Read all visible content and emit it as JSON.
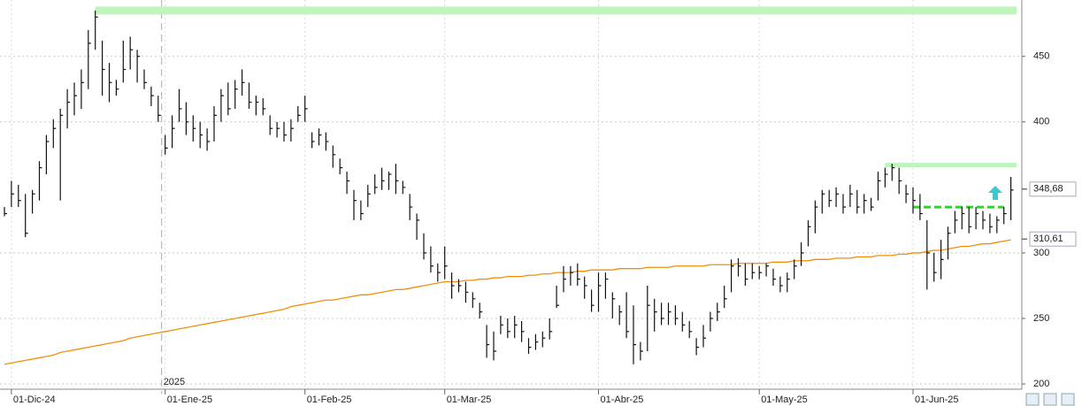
{
  "chart_data": {
    "type": "ohlc",
    "year_label": "2025",
    "categories": [
      null,
      "01-Dic-24",
      null,
      null,
      null,
      null,
      null,
      null,
      null,
      null,
      null,
      null,
      null,
      null,
      null,
      null,
      null,
      null,
      null,
      null,
      null,
      null,
      null,
      "01-Ene-25",
      null,
      null,
      null,
      null,
      null,
      null,
      null,
      null,
      null,
      null,
      null,
      null,
      null,
      null,
      null,
      null,
      null,
      null,
      null,
      "01-Feb-25",
      null,
      null,
      null,
      null,
      null,
      null,
      null,
      null,
      null,
      null,
      null,
      null,
      null,
      null,
      null,
      null,
      null,
      null,
      null,
      "01-Mar-25",
      null,
      null,
      null,
      null,
      null,
      null,
      null,
      null,
      null,
      null,
      null,
      null,
      null,
      null,
      null,
      null,
      null,
      null,
      null,
      null,
      null,
      "01-Abr-25",
      null,
      null,
      null,
      null,
      null,
      null,
      null,
      null,
      null,
      null,
      null,
      null,
      null,
      null,
      null,
      null,
      null,
      null,
      null,
      null,
      null,
      null,
      "01-May-25",
      null,
      null,
      null,
      null,
      null,
      null,
      null,
      null,
      null,
      null,
      null,
      null,
      null,
      null,
      null,
      null,
      null,
      null,
      null,
      null,
      null,
      "01-Jun-25",
      null,
      null,
      null,
      null,
      null,
      null,
      null,
      null,
      null,
      null,
      null,
      null,
      null,
      null
    ],
    "color": "#111111",
    "high": [
      335,
      355,
      352,
      345,
      348,
      370,
      390,
      402,
      410,
      425,
      430,
      440,
      470,
      485,
      462,
      445,
      432,
      462,
      465,
      455,
      440,
      427,
      420,
      390,
      405,
      425,
      415,
      405,
      400,
      395,
      412,
      425,
      430,
      432,
      440,
      430,
      420,
      418,
      405,
      400,
      400,
      402,
      412,
      420,
      392,
      395,
      392,
      382,
      372,
      362,
      348,
      340,
      352,
      360,
      365,
      362,
      368,
      355,
      345,
      330,
      315,
      305,
      292,
      305,
      285,
      280,
      278,
      270,
      262,
      245,
      240,
      252,
      250,
      252,
      248,
      235,
      238,
      240,
      250,
      275,
      290,
      290,
      292,
      282,
      272,
      285,
      285,
      270,
      260,
      270,
      260,
      232,
      275,
      265,
      262,
      262,
      260,
      255,
      248,
      235,
      245,
      255,
      262,
      275,
      295,
      296,
      292,
      292,
      290,
      292,
      288,
      282,
      285,
      295,
      308,
      325,
      340,
      348,
      348,
      350,
      345,
      352,
      348,
      345,
      342,
      362,
      365,
      368,
      365,
      352,
      350,
      345,
      325,
      300,
      310,
      320,
      332,
      335,
      335,
      335,
      332,
      330,
      328,
      335,
      358
    ],
    "low": [
      328,
      335,
      335,
      312,
      330,
      340,
      360,
      380,
      340,
      395,
      405,
      410,
      425,
      455,
      420,
      415,
      420,
      430,
      440,
      430,
      425,
      412,
      400,
      375,
      380,
      400,
      390,
      385,
      380,
      378,
      385,
      400,
      405,
      410,
      420,
      410,
      405,
      405,
      390,
      388,
      385,
      385,
      400,
      400,
      380,
      382,
      378,
      365,
      360,
      345,
      325,
      325,
      335,
      345,
      348,
      348,
      345,
      345,
      325,
      310,
      295,
      285,
      278,
      280,
      265,
      270,
      262,
      258,
      250,
      220,
      218,
      238,
      235,
      235,
      232,
      223,
      226,
      228,
      234,
      258,
      270,
      275,
      275,
      265,
      255,
      255,
      265,
      250,
      245,
      235,
      215,
      218,
      225,
      240,
      245,
      245,
      245,
      240,
      235,
      222,
      228,
      240,
      248,
      258,
      270,
      282,
      275,
      280,
      280,
      282,
      275,
      270,
      270,
      280,
      290,
      305,
      315,
      330,
      335,
      335,
      330,
      335,
      330,
      330,
      332,
      340,
      350,
      355,
      345,
      338,
      330,
      325,
      272,
      278,
      280,
      295,
      315,
      318,
      315,
      318,
      318,
      315,
      315,
      322,
      325
    ],
    "close": [
      330,
      345,
      340,
      315,
      345,
      365,
      385,
      395,
      405,
      415,
      420,
      430,
      460,
      480,
      440,
      430,
      425,
      440,
      455,
      450,
      430,
      420,
      405,
      380,
      395,
      410,
      400,
      395,
      390,
      385,
      405,
      420,
      410,
      425,
      430,
      415,
      415,
      410,
      395,
      395,
      390,
      395,
      405,
      410,
      385,
      390,
      385,
      375,
      365,
      355,
      340,
      330,
      345,
      350,
      355,
      360,
      355,
      350,
      335,
      325,
      300,
      290,
      285,
      290,
      275,
      275,
      270,
      265,
      255,
      230,
      225,
      245,
      240,
      245,
      240,
      228,
      232,
      235,
      240,
      260,
      280,
      285,
      280,
      275,
      260,
      275,
      280,
      265,
      255,
      240,
      230,
      225,
      260,
      255,
      250,
      255,
      250,
      245,
      240,
      228,
      235,
      250,
      255,
      265,
      290,
      290,
      280,
      285,
      285,
      290,
      280,
      275,
      280,
      290,
      300,
      320,
      335,
      345,
      340,
      345,
      335,
      345,
      335,
      340,
      335,
      355,
      360,
      365,
      355,
      345,
      340,
      330,
      300,
      285,
      295,
      315,
      325,
      330,
      320,
      330,
      325,
      320,
      325,
      330,
      348
    ],
    "moving_average": {
      "color": "#f0900a",
      "values": [
        215,
        216,
        217,
        218,
        219,
        220,
        221,
        222,
        224,
        225,
        226,
        227,
        228,
        229,
        230,
        231,
        232,
        233,
        235,
        236,
        237,
        238,
        239,
        240,
        241,
        242,
        243,
        244,
        245,
        246,
        247,
        248,
        249,
        250,
        251,
        252,
        253,
        254,
        255,
        256,
        257,
        259,
        260,
        261,
        262,
        263,
        264,
        264,
        265,
        266,
        267,
        268,
        268,
        269,
        270,
        271,
        272,
        272,
        273,
        274,
        275,
        276,
        277,
        278,
        278,
        278,
        279,
        279,
        280,
        280,
        281,
        281,
        282,
        282,
        282,
        283,
        283,
        284,
        284,
        285,
        285,
        285,
        286,
        286,
        287,
        287,
        287,
        287,
        288,
        288,
        288,
        288,
        289,
        289,
        289,
        289,
        290,
        290,
        290,
        290,
        290,
        291,
        291,
        291,
        291,
        292,
        292,
        292,
        292,
        292,
        293,
        293,
        293,
        294,
        294,
        294,
        295,
        295,
        295,
        296,
        296,
        296,
        297,
        297,
        297,
        298,
        298,
        298,
        299,
        299,
        300,
        300,
        301,
        302,
        302,
        303,
        304,
        305,
        305,
        306,
        307,
        307,
        308,
        309,
        310
      ]
    },
    "levels": [
      {
        "value": 485,
        "color": "#bdf5bd",
        "style": "solid"
      },
      {
        "value": 367,
        "color": "#bdf5bd",
        "style": "solid"
      },
      {
        "value": 335,
        "color": "#22dd22",
        "style": "dashed"
      }
    ],
    "price_tags": [
      {
        "value": 348.68,
        "label": "348,68"
      },
      {
        "value": 310.61,
        "label": "310,61"
      }
    ],
    "ylim": [
      196,
      493
    ],
    "yticks": [
      200,
      250,
      300,
      400,
      450
    ],
    "grid": true
  }
}
